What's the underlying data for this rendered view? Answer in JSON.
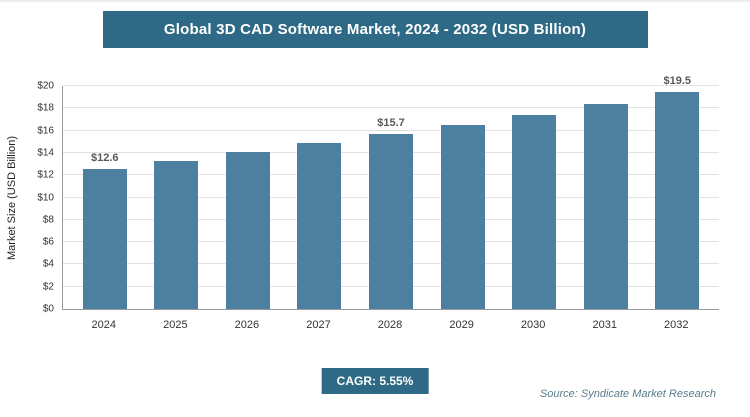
{
  "header": {
    "title": "Global 3D CAD Software Market, 2024 - 2032 (USD Billion)"
  },
  "colors": {
    "banner": "#2e6a86",
    "bar": "#4d7f9e",
    "badge": "#2e6a86"
  },
  "chart_data": {
    "type": "bar",
    "title": "Global 3D CAD Software Market, 2024 - 2032 (USD Billion)",
    "categories": [
      "2024",
      "2025",
      "2026",
      "2027",
      "2028",
      "2029",
      "2030",
      "2031",
      "2032"
    ],
    "values": [
      12.6,
      13.3,
      14.1,
      14.9,
      15.7,
      16.5,
      17.4,
      18.4,
      19.5
    ],
    "bar_labels": [
      "$12.6",
      "",
      "",
      "",
      "$15.7",
      "",
      "",
      "",
      "$19.5"
    ],
    "xlabel": "",
    "ylabel": "Market Size (USD Billion)",
    "ylim": [
      0,
      20
    ],
    "ytick_step": 2,
    "ytick_labels": [
      "$0",
      "$2",
      "$4",
      "$6",
      "$8",
      "$10",
      "$12",
      "$14",
      "$16",
      "$18",
      "$20"
    ],
    "grid": true,
    "legend": "none"
  },
  "footer": {
    "cagr_label": "CAGR: 5.55%",
    "source": "Source: Syndicate Market Research"
  }
}
